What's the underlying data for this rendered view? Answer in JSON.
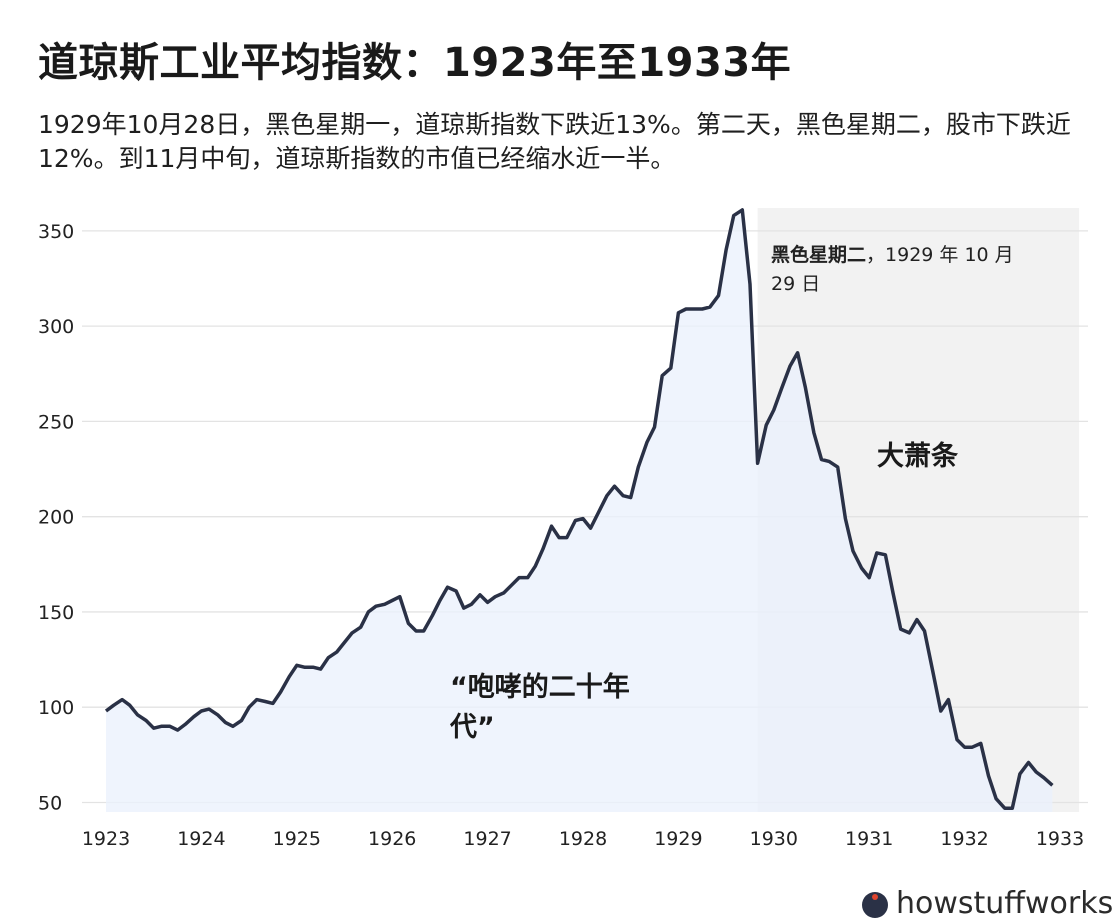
{
  "title": "道琼斯工业平均指数：1923年至1933年",
  "subtitle": "1929年10月28日，黑色星期一，道琼斯指数下跌近13%。第二天，黑色星期二，股市下跌近12%。到11月中旬，道琼斯指数的市值已经缩水近一半。",
  "footer": {
    "brand": "howstuffworks"
  },
  "colors": {
    "line": "#2a3146",
    "area": "#eaf1fc",
    "shade": "#f2f2f2",
    "grid": "#e3e3e3"
  },
  "chart_data": {
    "type": "area",
    "xlim": [
      1923,
      1933
    ],
    "ylim": [
      45,
      362
    ],
    "yticks": [
      50,
      100,
      150,
      200,
      250,
      300,
      350
    ],
    "xticks": [
      1923,
      1924,
      1925,
      1926,
      1927,
      1928,
      1929,
      1930,
      1931,
      1932,
      1933
    ],
    "grid": true,
    "shaded_region": {
      "x_start": 1929.83,
      "x_end": 1933.2
    },
    "annotations": {
      "black_tuesday": {
        "bold": "黑色星期二",
        "text": "，1929 年 10 月",
        "text2": "29 日"
      },
      "roaring_line1": "“咆哮的二十年",
      "roaring_line2": "代”",
      "depression": "大萧条"
    },
    "series": [
      {
        "points": [
          [
            1923.0,
            98
          ],
          [
            1923.08,
            101
          ],
          [
            1923.17,
            104
          ],
          [
            1923.25,
            101
          ],
          [
            1923.33,
            96
          ],
          [
            1923.42,
            93
          ],
          [
            1923.5,
            89
          ],
          [
            1923.58,
            90
          ],
          [
            1923.67,
            90
          ],
          [
            1923.75,
            88
          ],
          [
            1923.83,
            91
          ],
          [
            1923.92,
            95
          ],
          [
            1924.0,
            98
          ],
          [
            1924.08,
            99
          ],
          [
            1924.17,
            96
          ],
          [
            1924.25,
            92
          ],
          [
            1924.33,
            90
          ],
          [
            1924.42,
            93
          ],
          [
            1924.5,
            100
          ],
          [
            1924.58,
            104
          ],
          [
            1924.67,
            103
          ],
          [
            1924.75,
            102
          ],
          [
            1924.83,
            108
          ],
          [
            1924.92,
            116
          ],
          [
            1925.0,
            122
          ],
          [
            1925.08,
            121
          ],
          [
            1925.17,
            121
          ],
          [
            1925.25,
            120
          ],
          [
            1925.33,
            126
          ],
          [
            1925.42,
            129
          ],
          [
            1925.5,
            134
          ],
          [
            1925.58,
            139
          ],
          [
            1925.67,
            142
          ],
          [
            1925.75,
            150
          ],
          [
            1925.83,
            153
          ],
          [
            1925.92,
            154
          ],
          [
            1926.0,
            156
          ],
          [
            1926.08,
            158
          ],
          [
            1926.17,
            144
          ],
          [
            1926.25,
            140
          ],
          [
            1926.33,
            140
          ],
          [
            1926.42,
            148
          ],
          [
            1926.5,
            156
          ],
          [
            1926.58,
            163
          ],
          [
            1926.67,
            161
          ],
          [
            1926.75,
            152
          ],
          [
            1926.83,
            154
          ],
          [
            1926.92,
            159
          ],
          [
            1927.0,
            155
          ],
          [
            1927.08,
            158
          ],
          [
            1927.17,
            160
          ],
          [
            1927.25,
            164
          ],
          [
            1927.33,
            168
          ],
          [
            1927.42,
            168
          ],
          [
            1927.5,
            174
          ],
          [
            1927.58,
            183
          ],
          [
            1927.67,
            195
          ],
          [
            1927.75,
            189
          ],
          [
            1927.83,
            189
          ],
          [
            1927.92,
            198
          ],
          [
            1928.0,
            199
          ],
          [
            1928.08,
            194
          ],
          [
            1928.17,
            203
          ],
          [
            1928.25,
            211
          ],
          [
            1928.33,
            216
          ],
          [
            1928.42,
            211
          ],
          [
            1928.5,
            210
          ],
          [
            1928.58,
            226
          ],
          [
            1928.67,
            239
          ],
          [
            1928.75,
            247
          ],
          [
            1928.83,
            274
          ],
          [
            1928.92,
            278
          ],
          [
            1929.0,
            307
          ],
          [
            1929.08,
            309
          ],
          [
            1929.17,
            309
          ],
          [
            1929.25,
            309
          ],
          [
            1929.33,
            310
          ],
          [
            1929.42,
            316
          ],
          [
            1929.5,
            340
          ],
          [
            1929.58,
            358
          ],
          [
            1929.67,
            361
          ],
          [
            1929.75,
            322
          ],
          [
            1929.83,
            228
          ],
          [
            1929.92,
            248
          ],
          [
            1930.0,
            256
          ],
          [
            1930.08,
            267
          ],
          [
            1930.17,
            279
          ],
          [
            1930.25,
            286
          ],
          [
            1930.33,
            268
          ],
          [
            1930.42,
            244
          ],
          [
            1930.5,
            230
          ],
          [
            1930.58,
            229
          ],
          [
            1930.67,
            226
          ],
          [
            1930.75,
            199
          ],
          [
            1930.83,
            182
          ],
          [
            1930.92,
            173
          ],
          [
            1931.0,
            168
          ],
          [
            1931.08,
            181
          ],
          [
            1931.17,
            180
          ],
          [
            1931.25,
            160
          ],
          [
            1931.33,
            141
          ],
          [
            1931.42,
            139
          ],
          [
            1931.5,
            146
          ],
          [
            1931.58,
            140
          ],
          [
            1931.67,
            118
          ],
          [
            1931.75,
            98
          ],
          [
            1931.83,
            104
          ],
          [
            1931.92,
            83
          ],
          [
            1932.0,
            79
          ],
          [
            1932.08,
            79
          ],
          [
            1932.17,
            81
          ],
          [
            1932.25,
            64
          ],
          [
            1932.33,
            52
          ],
          [
            1932.42,
            47
          ],
          [
            1932.5,
            47
          ],
          [
            1932.58,
            65
          ],
          [
            1932.67,
            71
          ],
          [
            1932.75,
            66
          ],
          [
            1932.83,
            63
          ],
          [
            1932.92,
            59
          ]
        ]
      }
    ]
  }
}
